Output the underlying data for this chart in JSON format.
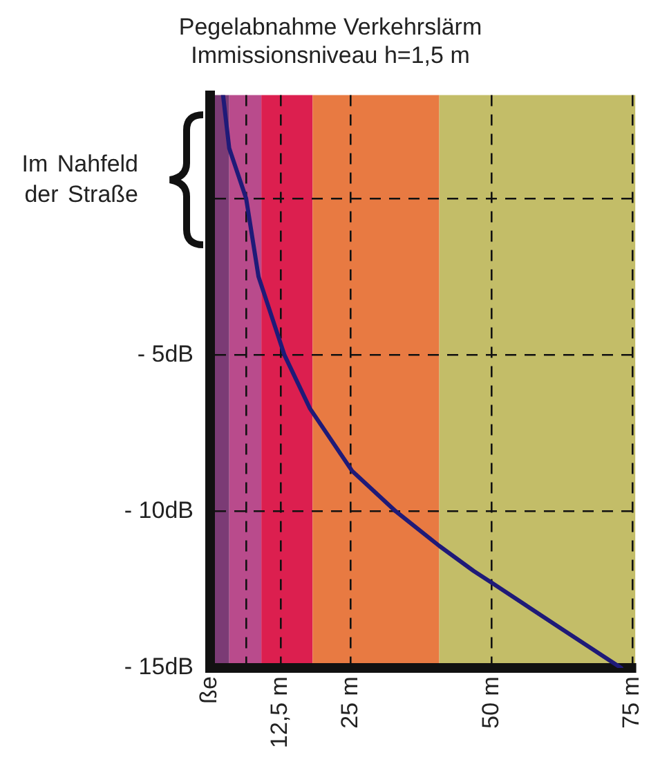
{
  "chart_data": {
    "type": "line",
    "title": "Pegelabnahme Verkehrslärm",
    "subtitle": "Immissionsniveau h=1,5 m",
    "annotations": [
      "Im Nahfeld der Straße"
    ],
    "series": [
      {
        "color": "#1f1a78",
        "x": [
          2.3,
          3.4,
          6.4,
          8.6,
          13.2,
          17.7,
          25.2,
          33,
          40.7,
          46.8,
          50.2,
          62,
          73
        ],
        "values": [
          3.3,
          1.6,
          0,
          -2.5,
          -5,
          -6.7,
          -8.7,
          -10,
          -11.1,
          -11.9,
          -12.3,
          -13.7,
          -15
        ]
      }
    ],
    "xlim": [
      0,
      75.5
    ],
    "xticks": [
      {
        "value": 0,
        "label": "ße"
      },
      {
        "value": 6.4,
        "label": null
      },
      {
        "value": 12.5,
        "label": "12,5 m"
      },
      {
        "value": 25,
        "label": "25 m"
      },
      {
        "value": 50,
        "label": "50 m"
      },
      {
        "value": 75,
        "label": "75 m"
      }
    ],
    "ylim": [
      -15,
      3.3
    ],
    "yticks": [
      {
        "value": -15,
        "label": "- 15dB"
      },
      {
        "value": -10,
        "label": "- 10dB"
      },
      {
        "value": -5,
        "label": "- 5dB"
      },
      {
        "value": 0,
        "label": null
      }
    ],
    "bands": [
      {
        "axis": "x",
        "from": 0,
        "to": 3.4,
        "color": "#7b3b75"
      },
      {
        "axis": "x",
        "from": 3.4,
        "to": 9.1,
        "color": "#b94b8c"
      },
      {
        "axis": "x",
        "from": 9.1,
        "to": 18.2,
        "color": "#dc1f4f"
      },
      {
        "axis": "x",
        "from": 18.2,
        "to": 40.7,
        "color": "#e87a42"
      },
      {
        "axis": "x",
        "from": 40.7,
        "to": 75.5,
        "color": "#c3bd68"
      }
    ],
    "grid": true,
    "legend": false,
    "marker": "none",
    "line_style": "solid"
  }
}
